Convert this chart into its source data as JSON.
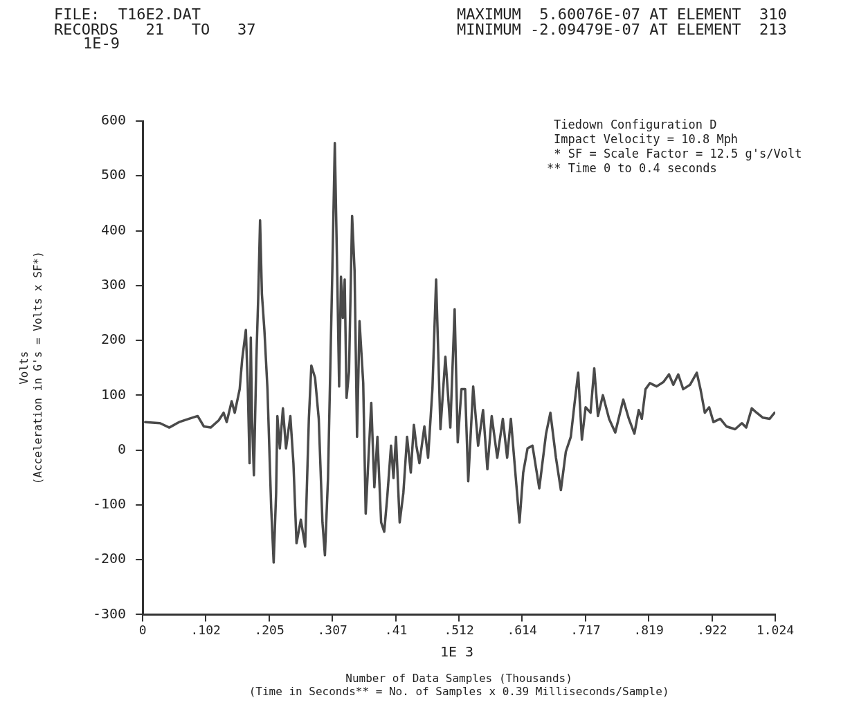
{
  "chart_data": {
    "type": "line",
    "xlabel": "Number of Data Samples (Thousands)\n(Time in Seconds** = No. of Samples x 0.39 Milliseconds/Sample)",
    "ylabel": "Volts\n(Acceleration in G's = Volts x SF*)",
    "annotations": [
      "FILE:  T16E2.DAT",
      "RECORDS   21   TO   37",
      "MAXIMUM  5.60076E-07 AT ELEMENT  310",
      "MINIMUM -2.09479E-07 AT ELEMENT  213",
      "1E-9",
      "1E 3",
      "Tiedown Configuration D",
      "Impact Velocity = 10.8 Mph",
      " * SF = Scale Factor = 12.5 g's/Volt",
      "** Time 0 to 0.4 seconds"
    ],
    "xlim": [
      0,
      1.024
    ],
    "xticks": [
      0,
      {
        "value": 0.102,
        "label": ".102"
      },
      {
        "value": 0.205,
        "label": ".205"
      },
      {
        "value": 0.307,
        "label": ".307"
      },
      {
        "value": 0.41,
        "label": ".41"
      },
      {
        "value": 0.512,
        "label": ".512"
      },
      {
        "value": 0.614,
        "label": ".614"
      },
      {
        "value": 0.717,
        "label": ".717"
      },
      {
        "value": 0.819,
        "label": ".819"
      },
      {
        "value": 0.922,
        "label": ".922"
      },
      1.024
    ],
    "ylim": [
      -300,
      600
    ],
    "yticks": [
      -300,
      -200,
      -100,
      0,
      100,
      200,
      300,
      400,
      500,
      600
    ],
    "grid": false,
    "legend": false,
    "marker": "none",
    "line_style": "solid",
    "series": [
      {
        "color": "#4a4a4a",
        "x": [
          0.004,
          0.028,
          0.043,
          0.059,
          0.075,
          0.089,
          0.099,
          0.11,
          0.123,
          0.131,
          0.136,
          0.144,
          0.149,
          0.157,
          0.161,
          0.167,
          0.17,
          0.173,
          0.175,
          0.177,
          0.18,
          0.184,
          0.187,
          0.19,
          0.193,
          0.197,
          0.202,
          0.208,
          0.212,
          0.216,
          0.218,
          0.222,
          0.227,
          0.232,
          0.239,
          0.244,
          0.249,
          0.256,
          0.263,
          0.269,
          0.273,
          0.279,
          0.285,
          0.291,
          0.295,
          0.3,
          0.307,
          0.311,
          0.315,
          0.318,
          0.321,
          0.324,
          0.327,
          0.33,
          0.334,
          0.339,
          0.343,
          0.347,
          0.351,
          0.357,
          0.361,
          0.37,
          0.375,
          0.38,
          0.386,
          0.391,
          0.396,
          0.402,
          0.406,
          0.41,
          0.416,
          0.422,
          0.428,
          0.434,
          0.439,
          0.443,
          0.448,
          0.456,
          0.462,
          0.469,
          0.475,
          0.482,
          0.49,
          0.498,
          0.505,
          0.51,
          0.516,
          0.522,
          0.527,
          0.535,
          0.543,
          0.551,
          0.558,
          0.565,
          0.574,
          0.583,
          0.59,
          0.596,
          0.604,
          0.61,
          0.616,
          0.623,
          0.631,
          0.642,
          0.653,
          0.66,
          0.669,
          0.677,
          0.685,
          0.693,
          0.699,
          0.705,
          0.711,
          0.717,
          0.725,
          0.731,
          0.737,
          0.745,
          0.755,
          0.765,
          0.778,
          0.787,
          0.796,
          0.803,
          0.808,
          0.814,
          0.821,
          0.832,
          0.843,
          0.852,
          0.859,
          0.867,
          0.875,
          0.886,
          0.897,
          0.903,
          0.91,
          0.917,
          0.924,
          0.935,
          0.945,
          0.959,
          0.97,
          0.977,
          0.986,
          0.994,
          1.004,
          1.015,
          1.023
        ],
        "values": [
          51,
          49,
          41,
          51,
          57,
          62,
          43,
          41,
          54,
          68,
          51,
          89,
          68,
          111,
          165,
          219,
          122,
          -24,
          205,
          57,
          -46,
          165,
          278,
          419,
          284,
          219,
          111,
          -105,
          -205,
          -78,
          62,
          3,
          76,
          3,
          62,
          -24,
          -170,
          -127,
          -176,
          57,
          154,
          132,
          57,
          -132,
          -192,
          -51,
          327,
          560,
          316,
          116,
          316,
          241,
          311,
          95,
          143,
          427,
          327,
          24,
          235,
          122,
          -116,
          86,
          -68,
          24,
          -132,
          -149,
          -84,
          8,
          -51,
          24,
          -132,
          -78,
          24,
          -41,
          46,
          8,
          -24,
          43,
          -14,
          111,
          311,
          38,
          170,
          41,
          257,
          14,
          111,
          111,
          -57,
          116,
          8,
          73,
          -35,
          62,
          -14,
          57,
          -14,
          57,
          -51,
          -132,
          -41,
          3,
          8,
          -70,
          30,
          68,
          -14,
          -73,
          -3,
          24,
          84,
          141,
          19,
          78,
          68,
          149,
          62,
          100,
          57,
          32,
          92,
          57,
          30,
          73,
          57,
          111,
          122,
          116,
          124,
          138,
          119,
          138,
          111,
          119,
          141,
          111,
          68,
          78,
          51,
          57,
          43,
          38,
          49,
          41,
          76,
          68,
          59,
          57,
          68
        ]
      }
    ]
  }
}
